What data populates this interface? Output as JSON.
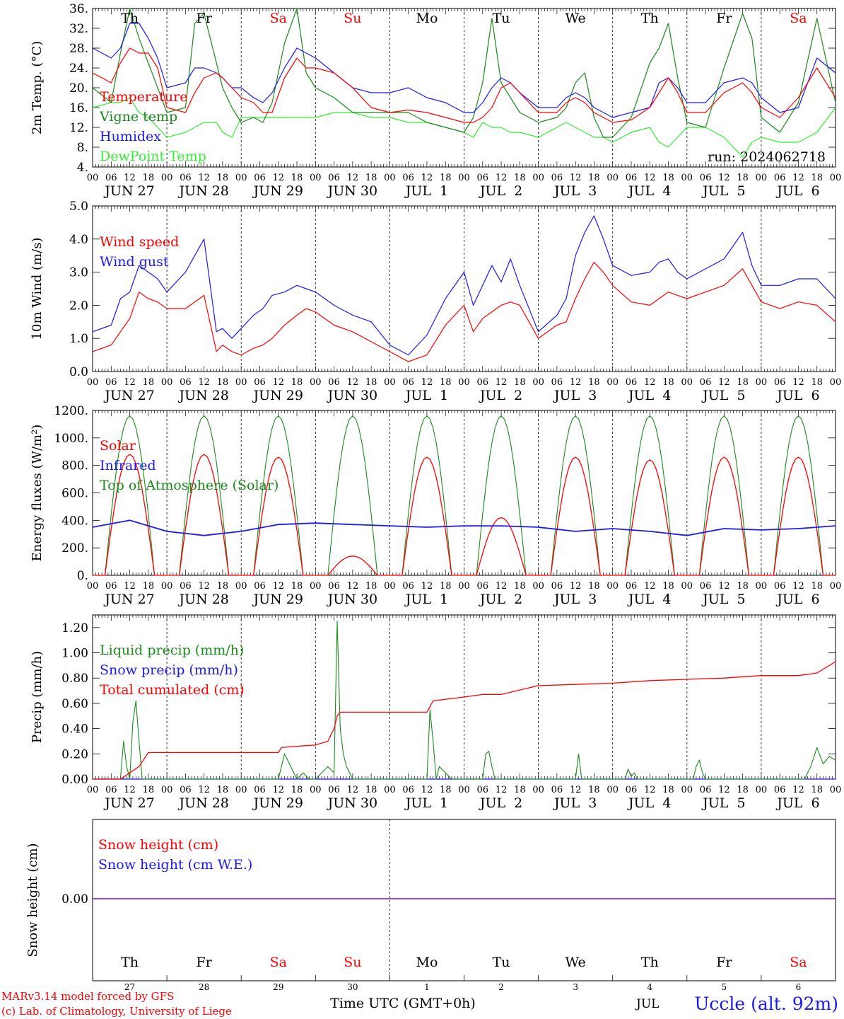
{
  "colors": {
    "red": "#ff0000",
    "green": "#1a8a1a",
    "blue": "#1a1aee",
    "lightgreen": "#33ee33",
    "black": "#000000",
    "purple": "#8a2be2"
  },
  "axis": {
    "hour_ticks": [
      "00",
      "06",
      "12",
      "18"
    ],
    "final_hour": "00",
    "date_labels": [
      "JUN 27",
      "JUN 28",
      "JUN 29",
      "JUN 30",
      "JUL  1",
      "JUL  2",
      "JUL  3",
      "JUL  4",
      "JUL  5",
      "JUL  6"
    ],
    "weekdays": [
      {
        "label": "Th",
        "color": "#000000"
      },
      {
        "label": "Fr",
        "color": "#000000"
      },
      {
        "label": "Sa",
        "color": "#ff0000"
      },
      {
        "label": "Su",
        "color": "#ff0000"
      },
      {
        "label": "Mo",
        "color": "#000000"
      },
      {
        "label": "Tu",
        "color": "#000000"
      },
      {
        "label": "We",
        "color": "#000000"
      },
      {
        "label": "Th",
        "color": "#000000"
      },
      {
        "label": "Fr",
        "color": "#000000"
      },
      {
        "label": "Sa",
        "color": "#ff0000"
      }
    ],
    "bottom_day_numbers": [
      "27",
      "28",
      "29",
      "30",
      "1",
      "2",
      "3",
      "4",
      "5",
      "6"
    ],
    "bottom_month": "JUL",
    "xlabel": "Time UTC (GMT+0h)"
  },
  "footer": {
    "credit_line1": "MARv3.14 model forced by GFS",
    "credit_line2": "(c) Lab. of Climatology, University of Liege",
    "station": "Uccle (alt. 92m)"
  },
  "chart_data": [
    {
      "type": "line",
      "ylabel": "2m Temp. (°C)",
      "ylim": [
        4,
        36
      ],
      "yticks": [
        "36.",
        "32.",
        "28.",
        "24.",
        "20.",
        "16.",
        "12.",
        "8.",
        "4."
      ],
      "annotation": "run: 2024062718",
      "x_hours": [
        0,
        6,
        9,
        12,
        15,
        18,
        21,
        24,
        30,
        33,
        36,
        40,
        42,
        45,
        48,
        52,
        55,
        58,
        62,
        66,
        69,
        72,
        78,
        84,
        90,
        96,
        102,
        108,
        114,
        120,
        123,
        126,
        129,
        132,
        135,
        138,
        144,
        150,
        153,
        156,
        159,
        162,
        165,
        168,
        174,
        180,
        183,
        186,
        189,
        192,
        198,
        204,
        210,
        213,
        216,
        222,
        228,
        234,
        240
      ],
      "series": [
        {
          "name": "Temperature",
          "color": "#ff0000",
          "values": [
            23,
            21,
            25,
            28,
            27,
            27,
            24,
            16,
            15,
            19,
            22,
            23,
            22,
            20,
            18,
            17,
            15,
            15,
            22,
            26,
            24,
            24,
            23,
            20,
            16,
            15,
            15.5,
            15,
            14,
            13,
            13,
            14,
            16,
            20,
            21,
            19,
            15,
            15,
            17,
            18,
            17,
            15,
            14,
            13,
            13.5,
            16,
            19,
            22,
            19,
            15,
            15,
            19,
            21,
            19,
            16,
            14,
            18,
            24,
            18
          ]
        },
        {
          "name": "Vigne temp",
          "color": "#1a8a1a",
          "values": [
            20,
            17,
            27,
            36,
            30,
            25,
            20,
            15,
            16,
            33,
            35,
            25,
            20,
            16,
            13,
            14,
            13,
            17,
            29,
            36,
            23,
            20,
            18,
            15,
            15,
            15,
            15,
            13,
            12,
            11,
            14,
            21,
            34,
            21,
            18,
            15,
            13,
            14,
            16,
            21,
            23,
            14,
            10,
            10,
            14,
            25,
            28,
            33,
            22,
            13,
            12,
            24,
            35,
            30,
            14,
            11,
            17,
            34,
            17
          ]
        },
        {
          "name": "Humidex",
          "color": "#1a1aee",
          "values": [
            28,
            26,
            28,
            33,
            33,
            30,
            26,
            20,
            21,
            24,
            24,
            23,
            22,
            20,
            20,
            18,
            17,
            19,
            24,
            28,
            27,
            26,
            23,
            20,
            19,
            19,
            20,
            18,
            17,
            15,
            15,
            17,
            20,
            22,
            21,
            19,
            16,
            16,
            18,
            19,
            18,
            16,
            15,
            14,
            15,
            16,
            21,
            22,
            20,
            17,
            17,
            21,
            22,
            21,
            18,
            15,
            16,
            26,
            23
          ]
        },
        {
          "name": "DewPoint Temp",
          "color": "#33ee33",
          "values": [
            16,
            17,
            17,
            18,
            15,
            14,
            12,
            10,
            11,
            12,
            13,
            13,
            11,
            10,
            14,
            14,
            14,
            14,
            14,
            14,
            14,
            14,
            15,
            15,
            14,
            14,
            13,
            13,
            12,
            11,
            10,
            13,
            12,
            12,
            11,
            11,
            10,
            12,
            13,
            12,
            11,
            10,
            10,
            9,
            11,
            12,
            9,
            8,
            10,
            12,
            12,
            10,
            6,
            9,
            10,
            9,
            9,
            11,
            16
          ]
        }
      ]
    },
    {
      "type": "line",
      "ylabel": "10m Wind (m/s)",
      "ylim": [
        0,
        5
      ],
      "yticks": [
        "5.0",
        "4.0",
        "3.0",
        "2.0",
        "1.0",
        "0.0"
      ],
      "x_hours": [
        0,
        6,
        9,
        12,
        15,
        18,
        21,
        24,
        30,
        33,
        36,
        40,
        42,
        45,
        48,
        52,
        55,
        58,
        62,
        66,
        69,
        72,
        78,
        84,
        90,
        96,
        102,
        108,
        114,
        120,
        123,
        126,
        129,
        132,
        135,
        138,
        144,
        150,
        153,
        156,
        159,
        162,
        165,
        168,
        174,
        180,
        183,
        186,
        189,
        192,
        198,
        204,
        210,
        213,
        216,
        222,
        228,
        234,
        240
      ],
      "series": [
        {
          "name": "Wind speed",
          "color": "#ff0000",
          "values": [
            0.6,
            0.8,
            1.2,
            1.6,
            2.4,
            2.2,
            2.1,
            1.9,
            1.9,
            2.1,
            2.3,
            0.6,
            0.8,
            0.6,
            0.5,
            0.7,
            0.8,
            1.0,
            1.4,
            1.7,
            1.9,
            1.8,
            1.4,
            1.2,
            0.9,
            0.6,
            0.3,
            0.5,
            1.4,
            2.0,
            1.2,
            1.6,
            1.8,
            2.0,
            2.1,
            2.0,
            1.0,
            1.4,
            1.5,
            2.2,
            2.8,
            3.3,
            3.0,
            2.6,
            2.1,
            2.0,
            2.2,
            2.4,
            2.3,
            2.2,
            2.4,
            2.6,
            3.1,
            2.6,
            2.1,
            1.9,
            2.1,
            2.0,
            1.5
          ]
        },
        {
          "name": "Wind gust",
          "color": "#1a1aee",
          "values": [
            1.2,
            1.4,
            2.2,
            2.4,
            3.2,
            3.0,
            2.8,
            2.4,
            3.0,
            3.5,
            4.0,
            1.2,
            1.3,
            1.0,
            1.3,
            1.7,
            1.9,
            2.3,
            2.4,
            2.6,
            2.5,
            2.4,
            2.0,
            1.7,
            1.5,
            0.8,
            0.5,
            1.1,
            2.2,
            3.0,
            2.0,
            2.6,
            3.2,
            2.7,
            3.4,
            2.6,
            1.2,
            1.7,
            2.2,
            3.5,
            4.2,
            4.7,
            4.0,
            3.2,
            2.9,
            3.0,
            3.3,
            3.4,
            3.0,
            2.8,
            3.1,
            3.4,
            4.2,
            3.2,
            2.6,
            2.6,
            2.8,
            2.8,
            2.2
          ]
        }
      ]
    },
    {
      "type": "line",
      "ylabel": "Energy fluxes (W/m²)",
      "ylim": [
        0,
        1200
      ],
      "yticks": [
        "1200.",
        "1000.",
        "800.",
        "600.",
        "400.",
        "200.",
        "0."
      ],
      "days": [
        {
          "solar_peak": 880,
          "toa_peak": 1160
        },
        {
          "solar_peak": 880,
          "toa_peak": 1160
        },
        {
          "solar_peak": 860,
          "toa_peak": 1160
        },
        {
          "solar_peak": 140,
          "toa_peak": 1160
        },
        {
          "solar_peak": 860,
          "toa_peak": 1160
        },
        {
          "solar_peak": 420,
          "toa_peak": 1160
        },
        {
          "solar_peak": 860,
          "toa_peak": 1160
        },
        {
          "solar_peak": 840,
          "toa_peak": 1160
        },
        {
          "solar_peak": 860,
          "toa_peak": 1160
        },
        {
          "solar_peak": 860,
          "toa_peak": 1160
        }
      ],
      "infrared_hours": [
        0,
        12,
        24,
        36,
        48,
        60,
        72,
        84,
        96,
        108,
        120,
        132,
        144,
        156,
        168,
        180,
        192,
        204,
        216,
        228,
        240
      ],
      "infrared_values": [
        350,
        400,
        320,
        290,
        320,
        370,
        380,
        370,
        360,
        350,
        360,
        360,
        350,
        320,
        340,
        320,
        290,
        340,
        330,
        340,
        360
      ],
      "series": [
        {
          "name": "Solar",
          "color": "#ff0000"
        },
        {
          "name": "Infrared",
          "color": "#1a1aee"
        },
        {
          "name": "Top of Atmosphere (Solar)",
          "color": "#1a8a1a"
        }
      ]
    },
    {
      "type": "line",
      "ylabel": "Precip (mm/h)",
      "ylim": [
        0,
        1.3
      ],
      "yticks": [
        "1.20",
        "1.00",
        "0.80",
        "0.60",
        "0.40",
        "0.20",
        "0.00"
      ],
      "liquid_hours": [
        0,
        9,
        10,
        11,
        12,
        13,
        14,
        15,
        16,
        17,
        18,
        60,
        62,
        64,
        66,
        68,
        70,
        72,
        74,
        76,
        78,
        79,
        80,
        81,
        82,
        83,
        84,
        86,
        88,
        108,
        109,
        110,
        111,
        112,
        114,
        116,
        118,
        120,
        126,
        127,
        128,
        129,
        130,
        132,
        156,
        157,
        158,
        172,
        173,
        174,
        175,
        176,
        180,
        194,
        195,
        196,
        197,
        198,
        230,
        232,
        234,
        236,
        238,
        240
      ],
      "liquid_values": [
        0,
        0,
        0.3,
        0.1,
        0,
        0.45,
        0.62,
        0.3,
        0,
        0,
        0,
        0,
        0.2,
        0.1,
        0,
        0.05,
        0,
        0,
        0.05,
        0.1,
        0.05,
        1.25,
        0.4,
        0.2,
        0.1,
        0.05,
        0,
        0,
        0,
        0,
        0.55,
        0.3,
        0,
        0.1,
        0.05,
        0,
        0,
        0,
        0,
        0.2,
        0.22,
        0.1,
        0,
        0,
        0,
        0.2,
        0,
        0,
        0.08,
        0.02,
        0.05,
        0,
        0,
        0,
        0.1,
        0.15,
        0.05,
        0,
        0,
        0.1,
        0.25,
        0.12,
        0.18,
        0.15
      ],
      "cumulated_hours": [
        0,
        9,
        12,
        15,
        18,
        24,
        48,
        60,
        61,
        66,
        72,
        76,
        78,
        79,
        80,
        84,
        96,
        108,
        110,
        120,
        126,
        132,
        144,
        156,
        168,
        180,
        192,
        204,
        216,
        228,
        234,
        240
      ],
      "cumulated_values": [
        0,
        0,
        0.05,
        0.1,
        0.21,
        0.21,
        0.21,
        0.21,
        0.25,
        0.26,
        0.27,
        0.3,
        0.4,
        0.5,
        0.53,
        0.53,
        0.53,
        0.53,
        0.62,
        0.65,
        0.67,
        0.67,
        0.74,
        0.75,
        0.76,
        0.78,
        0.79,
        0.8,
        0.82,
        0.82,
        0.84,
        0.93
      ],
      "series": [
        {
          "name": "Liquid precip (mm/h)",
          "color": "#1a8a1a"
        },
        {
          "name": "Snow precip (mm/h)",
          "color": "#1a1aee"
        },
        {
          "name": "Total cumulated (cm)",
          "color": "#ff0000"
        }
      ]
    },
    {
      "type": "line",
      "ylabel": "Snow height (cm)",
      "yticks": [
        "0.00"
      ],
      "series": [
        {
          "name": "Snow height (cm)",
          "color": "#ff0000",
          "values": [
            0,
            0
          ]
        },
        {
          "name": "Snow height (cm W.E.)",
          "color": "#1a1aee",
          "values": [
            0,
            0
          ]
        }
      ]
    }
  ]
}
